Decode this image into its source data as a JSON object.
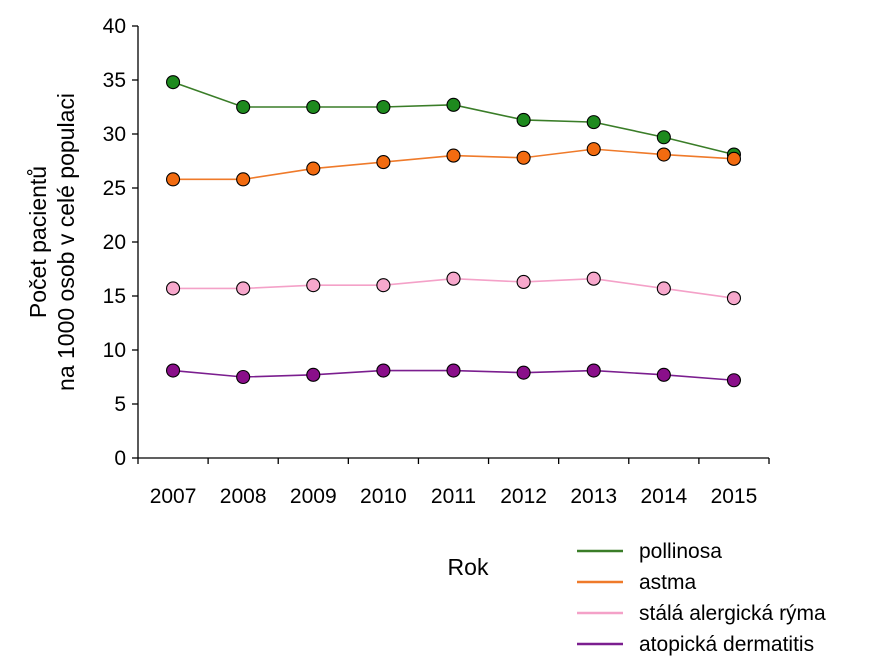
{
  "chart_data": {
    "type": "line",
    "title": "",
    "categories": [
      "2007",
      "2008",
      "2009",
      "2010",
      "2011",
      "2012",
      "2013",
      "2014",
      "2015"
    ],
    "xlabel": "Rok",
    "ylabel_lines": [
      "Počet pacientů",
      "na 1000 osob v celé populaci"
    ],
    "ylim": [
      0,
      40
    ],
    "yticks": [
      0,
      5,
      10,
      15,
      20,
      25,
      30,
      35,
      40
    ],
    "ytick_labels": [
      "0",
      "5",
      "10",
      "15",
      "20",
      "25",
      "30",
      "35",
      "40"
    ],
    "grid": false,
    "legend_position": "bottom-right",
    "series": [
      {
        "name": "pollinosa",
        "color": "#3a7d28",
        "marker_fill": "#1e8a1e",
        "values": [
          34.8,
          32.5,
          32.5,
          32.5,
          32.7,
          31.3,
          31.1,
          29.7,
          28.1
        ]
      },
      {
        "name": "astma",
        "color": "#ef7a2a",
        "marker_fill": "#f26b10",
        "values": [
          25.8,
          25.8,
          26.8,
          27.4,
          28.0,
          27.8,
          28.6,
          28.1,
          27.7
        ]
      },
      {
        "name": "stálá alergická rýma",
        "color": "#f4a1c8",
        "marker_fill": "#f7a8cc",
        "values": [
          15.7,
          15.7,
          16.0,
          16.0,
          16.6,
          16.3,
          16.6,
          15.7,
          14.8
        ]
      },
      {
        "name": "atopická dermatitis",
        "color": "#7b1e8f",
        "marker_fill": "#8a0f8a",
        "values": [
          8.1,
          7.5,
          7.7,
          8.1,
          8.1,
          7.9,
          8.1,
          7.7,
          7.2
        ]
      }
    ]
  }
}
